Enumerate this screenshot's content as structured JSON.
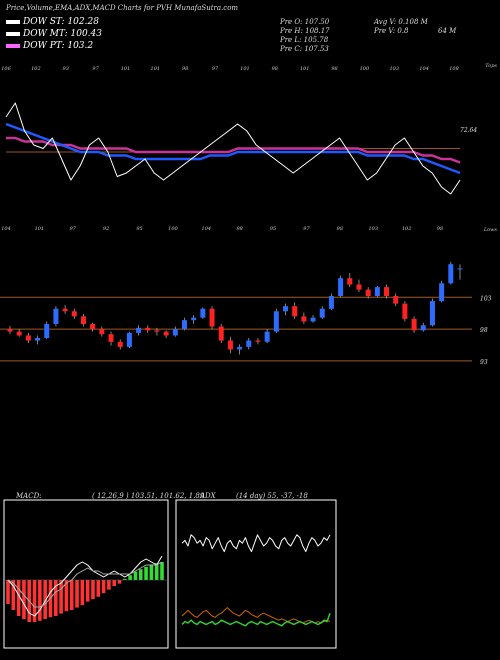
{
  "header": {
    "title": "Price,Volume,EMA,ADX,MACD Charts for PVH MunafaSutra.com"
  },
  "legend": [
    {
      "label": "DOW ST: 102.28",
      "color": "#ffffff"
    },
    {
      "label": "DOW MT: 100.43",
      "color": "#ffffff"
    },
    {
      "label": "DOW PT: 103.2",
      "color": "#ff66ff"
    }
  ],
  "info": {
    "prev_open": "Pre   O: 107.50",
    "prev_high": "Pre   H: 108.17",
    "prev_low": "Pre   L: 105.78",
    "prev_close": "Pre   C: 107.53",
    "avg_volume": "Avg V: 0.108  M",
    "prev_volume": "Pre   V: 0.8",
    "prev_volume_unit": "64  M"
  },
  "colors": {
    "ema_short": "#ffffff",
    "ema_mid": "#1e5aff",
    "ema_long": "#cc3399",
    "ema_longest": "#a0522d",
    "candle_up": "#2e6bff",
    "candle_down": "#ff2222",
    "macd_pos": "#33dd33",
    "macd_neg": "#ff3333",
    "adx_di_plus": "#33cc33",
    "adx_di_minus": "#cc6600",
    "grid_line": "#a05a20"
  },
  "chart_data": [
    {
      "type": "line",
      "name": "ema-panel",
      "top_ticks": [
        "106",
        "102",
        "93",
        "97",
        "101",
        "101",
        "98",
        "97",
        "101",
        "98",
        "101",
        "98",
        "100",
        "103",
        "104",
        "108"
      ],
      "bottom_ticks": [
        "104",
        "101",
        "97",
        "92",
        "95",
        "100",
        "104",
        "98",
        "95",
        "97",
        "98",
        "103",
        "102",
        "98"
      ],
      "right_label_top": "Tops",
      "right_label_bottom": "Lows",
      "value_label": "72.64",
      "series": [
        {
          "values": [
            88,
            92,
            84,
            80,
            79,
            82,
            76,
            70,
            74,
            80,
            82,
            78,
            71,
            72,
            74,
            76,
            72,
            70,
            72,
            74,
            76,
            78,
            80,
            82,
            84,
            86,
            84,
            80,
            78,
            76,
            74,
            72,
            74,
            76,
            78,
            80,
            82,
            78,
            74,
            70,
            72,
            76,
            80,
            82,
            78,
            74,
            72,
            68,
            66,
            70
          ]
        },
        {
          "values": [
            86,
            85,
            84,
            83,
            82,
            81,
            80,
            79,
            78,
            78,
            78,
            77,
            77,
            77,
            76,
            76,
            76,
            76,
            76,
            76,
            76,
            76,
            77,
            77,
            77,
            78,
            78,
            78,
            78,
            78,
            78,
            78,
            78,
            78,
            78,
            78,
            78,
            78,
            78,
            77,
            77,
            77,
            77,
            77,
            76,
            76,
            75,
            74,
            73,
            72
          ]
        },
        {
          "values": [
            82,
            82,
            81,
            81,
            81,
            80,
            80,
            80,
            79,
            79,
            79,
            79,
            79,
            79,
            78,
            78,
            78,
            78,
            78,
            78,
            78,
            78,
            78,
            78,
            78,
            79,
            79,
            79,
            79,
            79,
            79,
            79,
            79,
            79,
            79,
            79,
            79,
            79,
            79,
            78,
            78,
            78,
            78,
            78,
            78,
            77,
            77,
            76,
            76,
            75
          ]
        },
        {
          "values": [
            78,
            78,
            78,
            78,
            78,
            78,
            78,
            78,
            78,
            78,
            78,
            78,
            78,
            78,
            78,
            78,
            78,
            78,
            78,
            78,
            78,
            78,
            78,
            78,
            78,
            79,
            79,
            79,
            79,
            79,
            79,
            79,
            79,
            79,
            79,
            79,
            79,
            79,
            79,
            79,
            79,
            79,
            79,
            79,
            79,
            79,
            79,
            79,
            79,
            79
          ]
        }
      ]
    },
    {
      "type": "candlestick",
      "name": "price-panel",
      "top_ticks": [
        "104",
        "101",
        "97",
        "92",
        "95",
        "100",
        "104",
        "98",
        "95",
        "97",
        "98",
        "103",
        "102",
        "98"
      ],
      "right_label": "Lows",
      "levels": [
        103,
        98,
        93
      ],
      "ylim": [
        90,
        112
      ],
      "candles": [
        [
          98,
          98.5,
          97.2,
          97.6
        ],
        [
          97.6,
          98,
          96.8,
          97.0
        ],
        [
          97.0,
          97.4,
          95.8,
          96.2
        ],
        [
          96.2,
          97.0,
          95.6,
          96.6
        ],
        [
          96.6,
          99.2,
          96.4,
          98.8
        ],
        [
          98.8,
          101.6,
          98.4,
          101.2
        ],
        [
          101.2,
          101.8,
          100.4,
          100.8
        ],
        [
          100.8,
          101.2,
          99.6,
          100.0
        ],
        [
          100.0,
          100.4,
          98.4,
          98.8
        ],
        [
          98.8,
          99.0,
          97.6,
          98.0
        ],
        [
          98.0,
          98.4,
          96.8,
          97.2
        ],
        [
          97.2,
          97.6,
          95.4,
          96.0
        ],
        [
          96.0,
          96.4,
          94.8,
          95.2
        ],
        [
          95.2,
          97.6,
          95.0,
          97.4
        ],
        [
          97.4,
          98.6,
          97.0,
          98.2
        ],
        [
          98.2,
          98.6,
          97.4,
          97.8
        ],
        [
          97.8,
          98.2,
          97.0,
          97.6
        ],
        [
          97.6,
          97.8,
          96.6,
          97.0
        ],
        [
          97.0,
          98.4,
          96.8,
          98.0
        ],
        [
          98.0,
          99.8,
          97.8,
          99.4
        ],
        [
          99.4,
          100.2,
          98.8,
          99.8
        ],
        [
          99.8,
          101.4,
          99.6,
          101.2
        ],
        [
          101.2,
          101.6,
          98.0,
          98.4
        ],
        [
          98.4,
          98.8,
          95.8,
          96.2
        ],
        [
          96.2,
          96.8,
          94.2,
          94.8
        ],
        [
          94.8,
          95.6,
          94.0,
          95.2
        ],
        [
          95.2,
          96.6,
          94.8,
          96.2
        ],
        [
          96.2,
          96.6,
          95.6,
          96.0
        ],
        [
          96.0,
          98.0,
          95.8,
          97.6
        ],
        [
          97.6,
          101.2,
          97.4,
          100.8
        ],
        [
          100.8,
          102.0,
          100.2,
          101.6
        ],
        [
          101.6,
          102.2,
          99.6,
          100.0
        ],
        [
          100.0,
          100.6,
          98.8,
          99.2
        ],
        [
          99.2,
          100.2,
          99.0,
          99.8
        ],
        [
          99.8,
          101.6,
          99.6,
          101.2
        ],
        [
          101.2,
          103.6,
          101.0,
          103.2
        ],
        [
          103.2,
          106.4,
          103.0,
          106.0
        ],
        [
          106.0,
          106.8,
          104.6,
          105.0
        ],
        [
          105.0,
          105.8,
          103.8,
          104.2
        ],
        [
          104.2,
          104.6,
          102.8,
          103.2
        ],
        [
          103.2,
          104.8,
          103.0,
          104.6
        ],
        [
          104.6,
          105.0,
          102.8,
          103.2
        ],
        [
          103.2,
          103.6,
          101.6,
          102.0
        ],
        [
          102.0,
          102.4,
          99.2,
          99.6
        ],
        [
          99.6,
          100.0,
          97.4,
          97.8
        ],
        [
          97.8,
          99.0,
          97.6,
          98.6
        ],
        [
          98.6,
          102.8,
          98.4,
          102.4
        ],
        [
          102.4,
          105.6,
          102.2,
          105.2
        ],
        [
          105.2,
          108.6,
          105.0,
          108.2
        ],
        [
          107.5,
          108.17,
          105.78,
          107.53
        ]
      ]
    },
    {
      "type": "bar",
      "name": "macd-panel",
      "title": "MACD:",
      "params": "( 12,26,9 ) 103.51, 101.62, 1.89",
      "histogram": [
        -4,
        -5,
        -6,
        -6.5,
        -7,
        -7,
        -6.8,
        -6.5,
        -6.2,
        -6,
        -5.6,
        -5.2,
        -5,
        -4.6,
        -4.2,
        -3.6,
        -3.2,
        -2.8,
        -2.2,
        -1.6,
        -1,
        -0.6,
        0.2,
        0.8,
        1.4,
        1.8,
        2.2,
        2.6,
        2.8,
        3
      ],
      "macd_line": [
        0,
        -2,
        -5,
        -8,
        -11,
        -12,
        -10,
        -7,
        -4,
        -2,
        -1,
        1,
        3,
        5,
        6,
        5,
        3,
        2,
        1,
        2,
        3,
        2,
        1,
        2,
        4,
        6,
        7,
        6,
        5,
        8
      ],
      "signal_line": [
        0,
        -1,
        -3,
        -5,
        -7,
        -9,
        -9,
        -8,
        -6,
        -4,
        -3,
        -1,
        0,
        2,
        3,
        4,
        3,
        3,
        2,
        2,
        2,
        2,
        2,
        2,
        3,
        4,
        5,
        5,
        5,
        6
      ]
    },
    {
      "type": "line",
      "name": "adx-panel",
      "title": "ADX",
      "params": "(14  day) 55, -37, -18",
      "adx": [
        72,
        74,
        70,
        78,
        76,
        72,
        74,
        70,
        76,
        74,
        68,
        72,
        76,
        70,
        66,
        72,
        74,
        70,
        68,
        74,
        72,
        76,
        70,
        66,
        72,
        78,
        74,
        70,
        72,
        76,
        74,
        70,
        68,
        74,
        76,
        72,
        70,
        74,
        78,
        76,
        70,
        66,
        72,
        76,
        74,
        70,
        72,
        76,
        74,
        78
      ],
      "di_plus": [
        14,
        16,
        15,
        17,
        15,
        14,
        16,
        15,
        14,
        15,
        16,
        14,
        15,
        17,
        16,
        15,
        14,
        15,
        16,
        15,
        14,
        13,
        15,
        16,
        15,
        14,
        16,
        15,
        14,
        15,
        16,
        15,
        14,
        13,
        15,
        16,
        15,
        14,
        15,
        16,
        15,
        14,
        15,
        16,
        15,
        14,
        15,
        17,
        16,
        22
      ],
      "di_minus": [
        20,
        22,
        24,
        22,
        20,
        19,
        21,
        23,
        24,
        22,
        20,
        19,
        21,
        22,
        24,
        26,
        24,
        22,
        21,
        20,
        22,
        24,
        23,
        21,
        20,
        19,
        21,
        22,
        21,
        20,
        19,
        18,
        17,
        18,
        17,
        16,
        17,
        18,
        17,
        16,
        15,
        16,
        17,
        16,
        15,
        16,
        15,
        16,
        17,
        16
      ]
    }
  ]
}
